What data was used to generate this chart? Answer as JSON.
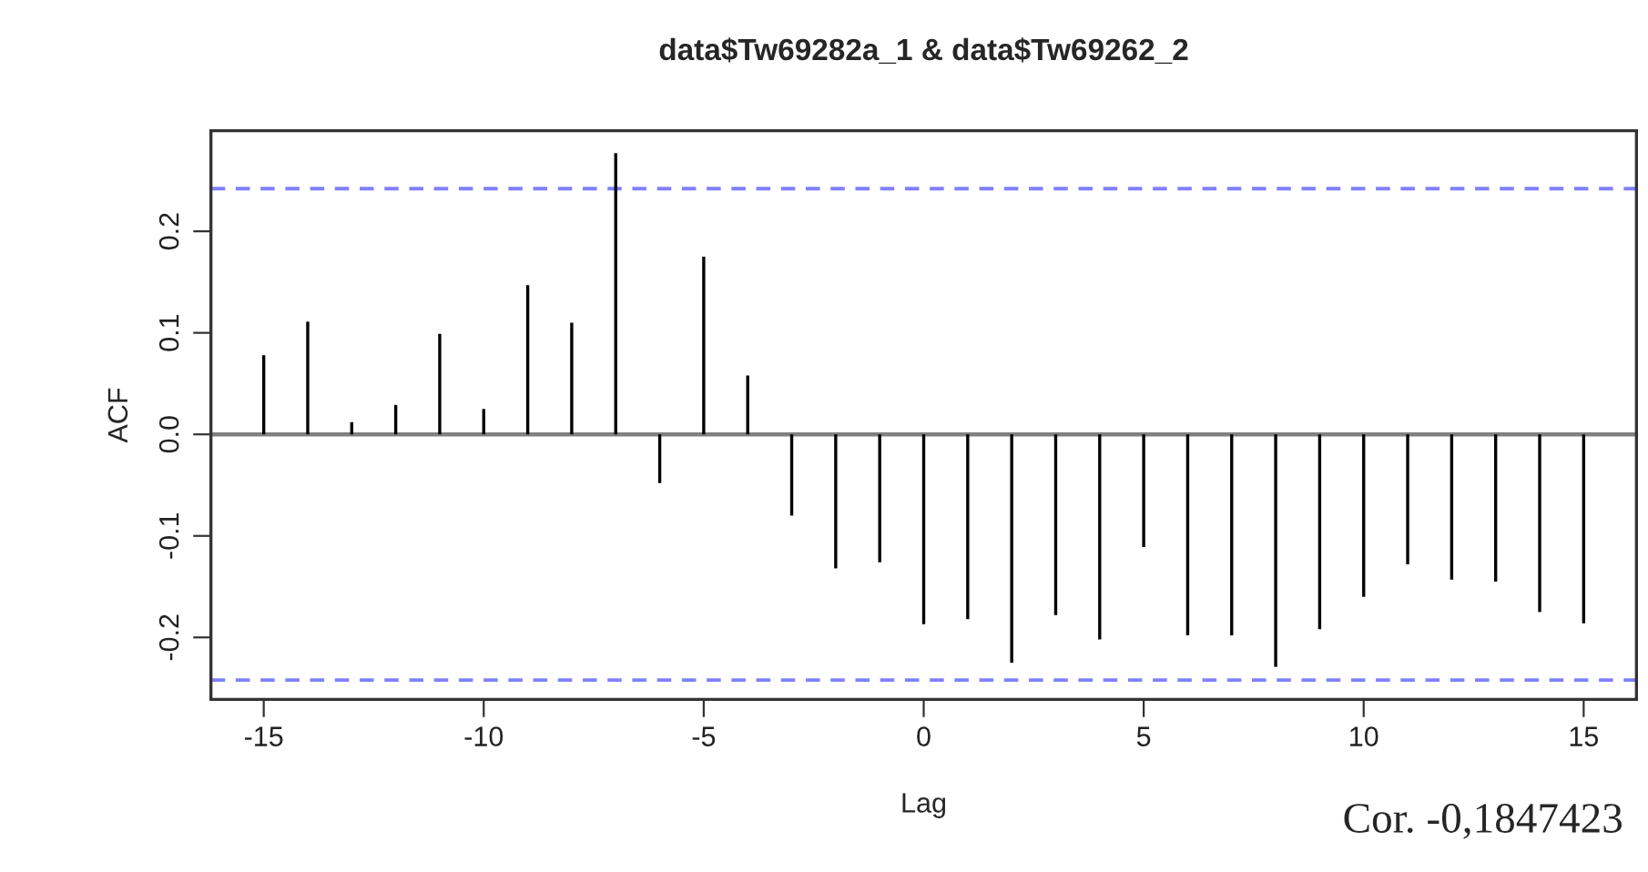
{
  "chart_data": {
    "type": "bar",
    "title": "data$Tw69282a_1 & data$Tw69262_2",
    "xlabel": "Lag",
    "ylabel": "ACF",
    "x": [
      -15,
      -14,
      -13,
      -12,
      -11,
      -10,
      -9,
      -8,
      -7,
      -6,
      -5,
      -4,
      -3,
      -2,
      -1,
      0,
      1,
      2,
      3,
      4,
      5,
      6,
      7,
      8,
      9,
      10,
      11,
      12,
      13,
      14,
      15
    ],
    "series": [
      {
        "color": "#000000",
        "values": [
          0.078,
          0.111,
          0.012,
          0.029,
          0.099,
          0.025,
          0.147,
          0.11,
          0.277,
          -0.048,
          0.175,
          0.058,
          -0.08,
          -0.132,
          -0.126,
          -0.187,
          -0.182,
          -0.225,
          -0.178,
          -0.202,
          -0.111,
          -0.198,
          -0.198,
          -0.229,
          -0.192,
          -0.16,
          -0.128,
          -0.143,
          -0.145,
          -0.175,
          -0.186
        ]
      }
    ],
    "xlim": [
      -16.2,
      16.2
    ],
    "xticks": [
      -15,
      -10,
      -5,
      0,
      5,
      10,
      15
    ],
    "ylim": [
      -0.261,
      0.299
    ],
    "yticks": [
      -0.2,
      -0.1,
      {
        "value": 0,
        "label": "0.0"
      },
      0.1,
      0.2
    ],
    "ref_lines": [
      {
        "axis": "y",
        "value": 0.242,
        "color": "#8080ff",
        "line_style": "dashed"
      },
      {
        "axis": "y",
        "value": -0.242,
        "color": "#8080ff",
        "line_style": "dashed"
      },
      {
        "axis": "y",
        "value": 0,
        "color": "#808080",
        "line_style": "solid"
      }
    ],
    "annotations": [
      "Cor. -0,1847423"
    ],
    "grid": false
  }
}
